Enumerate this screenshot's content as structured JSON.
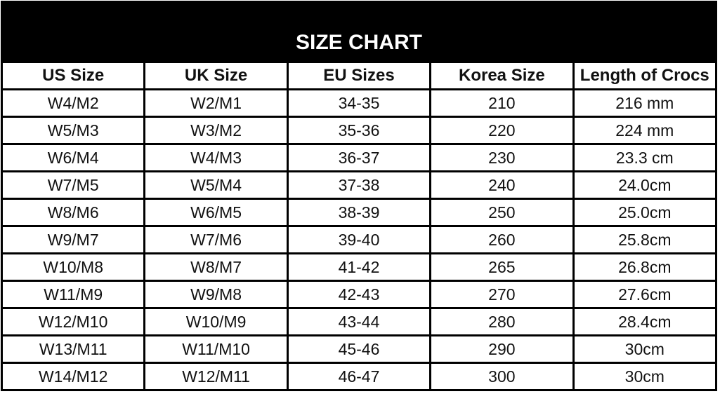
{
  "title": "SIZE CHART",
  "columns": [
    "US Size",
    "UK Size",
    "EU Sizes",
    "Korea Size",
    "Length of Crocs"
  ],
  "rows": [
    [
      "W4/M2",
      "W2/M1",
      "34-35",
      "210",
      "216 mm"
    ],
    [
      "W5/M3",
      "W3/M2",
      "35-36",
      "220",
      "224 mm"
    ],
    [
      "W6/M4",
      "W4/M3",
      "36-37",
      "230",
      "23.3 cm"
    ],
    [
      "W7/M5",
      "W5/M4",
      "37-38",
      "240",
      "24.0cm"
    ],
    [
      "W8/M6",
      "W6/M5",
      "38-39",
      "250",
      "25.0cm"
    ],
    [
      "W9/M7",
      "W7/M6",
      "39-40",
      "260",
      "25.8cm"
    ],
    [
      "W10/M8",
      "W8/M7",
      "41-42",
      "265",
      "26.8cm"
    ],
    [
      "W11/M9",
      "W9/M8",
      "42-43",
      "270",
      "27.6cm"
    ],
    [
      "W12/M10",
      "W10/M9",
      "43-44",
      "280",
      "28.4cm"
    ],
    [
      "W13/M11",
      "W11/M10",
      "45-46",
      "290",
      "30cm"
    ],
    [
      "W14/M12",
      "W12/M11",
      "46-47",
      "300",
      "30cm"
    ]
  ]
}
